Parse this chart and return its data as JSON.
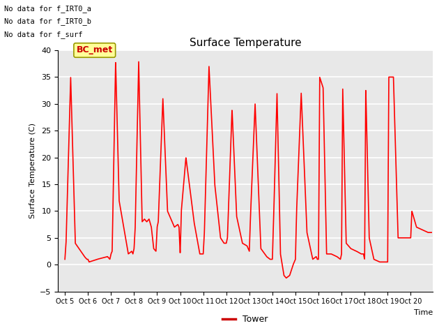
{
  "title": "Surface Temperature",
  "xlabel": "Time",
  "ylabel": "Surface Temperature (C)",
  "ylim": [
    -5,
    40
  ],
  "yticks": [
    -5,
    0,
    5,
    10,
    15,
    20,
    25,
    30,
    35,
    40
  ],
  "xtick_labels": [
    "Oct 5",
    "Oct 6",
    "Oct 7",
    "Oct 8",
    "Oct 9",
    "Oct 10",
    "Oct 11",
    "Oct 12",
    "Oct 13",
    "Oct 14",
    "Oct 15",
    "Oct 16",
    "Oct 17",
    "Oct 18",
    "Oct 19",
    "Oct 20"
  ],
  "line_color": "#ff0000",
  "line_width": 1.2,
  "legend_label": "Tower",
  "legend_line_color": "#cc0000",
  "bg_color": "#e8e8e8",
  "annotations": [
    "No data for f_IRT0_a",
    "No data for f_IRT0_b",
    "No data for f_surf"
  ],
  "bc_met_label": "BC_met",
  "bc_met_bg": "#ffff99",
  "bc_met_border": "#999900",
  "bc_met_text_color": "#cc0000",
  "key_x": [
    0.0,
    0.05,
    0.25,
    0.45,
    0.85,
    0.95,
    1.0,
    1.05,
    1.4,
    1.85,
    1.95,
    2.0,
    2.05,
    2.2,
    2.35,
    2.55,
    2.75,
    2.9,
    2.95,
    3.0,
    3.05,
    3.2,
    3.35,
    3.45,
    3.55,
    3.65,
    3.75,
    3.85,
    3.95,
    4.0,
    4.05,
    4.25,
    4.45,
    4.75,
    4.9,
    4.95,
    5.0,
    5.05,
    5.25,
    5.4,
    5.6,
    5.85,
    5.95,
    6.0,
    6.05,
    6.25,
    6.5,
    6.75,
    6.9,
    6.95,
    7.0,
    7.05,
    7.25,
    7.45,
    7.7,
    7.9,
    7.95,
    8.0,
    8.05,
    8.25,
    8.5,
    8.75,
    8.9,
    8.95,
    9.0,
    9.05,
    9.2,
    9.35,
    9.5,
    9.6,
    9.75,
    9.9,
    9.95,
    10.0,
    10.05,
    10.25,
    10.5,
    10.75,
    10.9,
    10.95,
    11.0,
    11.05,
    11.2,
    11.35,
    11.55,
    11.8,
    11.95,
    12.0,
    12.05,
    12.2,
    12.4,
    12.65,
    12.85,
    12.95,
    13.0,
    13.05,
    13.2,
    13.4,
    13.65,
    13.85,
    13.95,
    14.0,
    14.05,
    14.25,
    14.45,
    14.7,
    14.85,
    14.95,
    15.0,
    15.05,
    15.25,
    15.5,
    15.75,
    15.9
  ],
  "key_y": [
    1.0,
    4.0,
    35.0,
    4.0,
    1.5,
    1.0,
    1.0,
    0.5,
    1.0,
    1.5,
    1.0,
    2.0,
    2.5,
    38.0,
    12.0,
    7.0,
    2.0,
    2.5,
    2.0,
    3.0,
    7.0,
    38.0,
    8.0,
    8.5,
    8.0,
    8.5,
    7.0,
    3.0,
    2.5,
    7.0,
    8.0,
    31.0,
    10.0,
    7.0,
    7.5,
    7.0,
    2.0,
    10.0,
    20.0,
    15.0,
    8.0,
    2.0,
    2.0,
    2.0,
    6.0,
    37.0,
    15.0,
    5.0,
    4.0,
    4.0,
    4.0,
    5.0,
    29.0,
    9.0,
    4.0,
    3.5,
    3.0,
    2.5,
    9.0,
    30.0,
    3.0,
    1.5,
    1.0,
    1.0,
    1.0,
    8.0,
    32.0,
    2.0,
    -2.0,
    -2.5,
    -2.0,
    0.0,
    0.5,
    1.0,
    10.0,
    32.0,
    6.0,
    1.0,
    1.5,
    1.0,
    1.0,
    35.0,
    33.0,
    2.0,
    2.0,
    1.5,
    1.0,
    2.0,
    33.0,
    4.0,
    3.0,
    2.5,
    2.0,
    2.0,
    1.0,
    33.0,
    5.0,
    1.0,
    0.5,
    0.5,
    0.5,
    0.5,
    35.0,
    35.0,
    5.0,
    5.0,
    5.0,
    5.0,
    5.0,
    10.0,
    7.0,
    6.5,
    6.0,
    6.0
  ]
}
